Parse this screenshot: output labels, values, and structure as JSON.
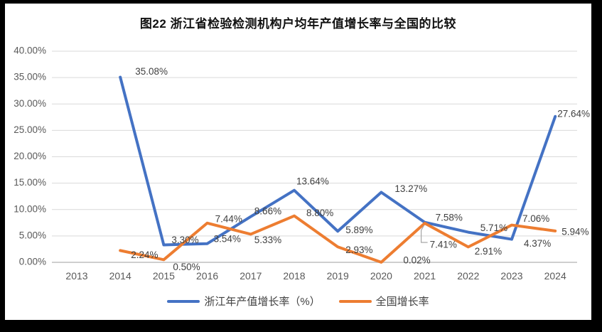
{
  "title": "图22 浙江省检验检测机构户均年产值增长率与全国的比较",
  "colors": {
    "background": "#000000",
    "panel": "#ffffff",
    "grid": "#D9D9D9",
    "axis": "#BFBFBF",
    "tick_text": "#595959",
    "data_label": "#404040",
    "leader": "#A6A6A6"
  },
  "chart_data": {
    "type": "line",
    "categories": [
      "2013",
      "2014",
      "2015",
      "2016",
      "2017",
      "2018",
      "2019",
      "2020",
      "2021",
      "2022",
      "2023",
      "2024"
    ],
    "series": [
      {
        "name": "浙江年产值增长率（%）",
        "color": "#4472C4",
        "values": [
          null,
          35.08,
          3.3,
          3.54,
          8.66,
          13.64,
          5.89,
          13.27,
          7.58,
          5.71,
          4.37,
          27.64
        ],
        "labels": [
          null,
          "35.08%",
          "3.30%",
          "3.54%",
          "8.66%",
          "13.64%",
          "5.89%",
          "13.27%",
          "7.58%",
          "5.71%",
          "4.37%",
          "27.64%"
        ]
      },
      {
        "name": "全国增长率",
        "color": "#ED7D31",
        "values": [
          null,
          2.24,
          0.5,
          7.44,
          5.33,
          8.8,
          2.93,
          0.02,
          7.41,
          2.91,
          7.06,
          5.94
        ],
        "labels": [
          null,
          "2.24%",
          "0.50%",
          "7.44%",
          "5.33%",
          "8.80%",
          "2.93%",
          "0.02%",
          "7.41%",
          "2.91%",
          "7.06%",
          "5.94%"
        ]
      }
    ],
    "y_ticks": [
      "0.00%",
      "5.00%",
      "10.00%",
      "15.00%",
      "20.00%",
      "25.00%",
      "30.00%",
      "35.00%",
      "40.00%"
    ],
    "ylim": [
      0,
      40
    ],
    "y_step": 5,
    "grid": true,
    "legend_position": "bottom"
  }
}
